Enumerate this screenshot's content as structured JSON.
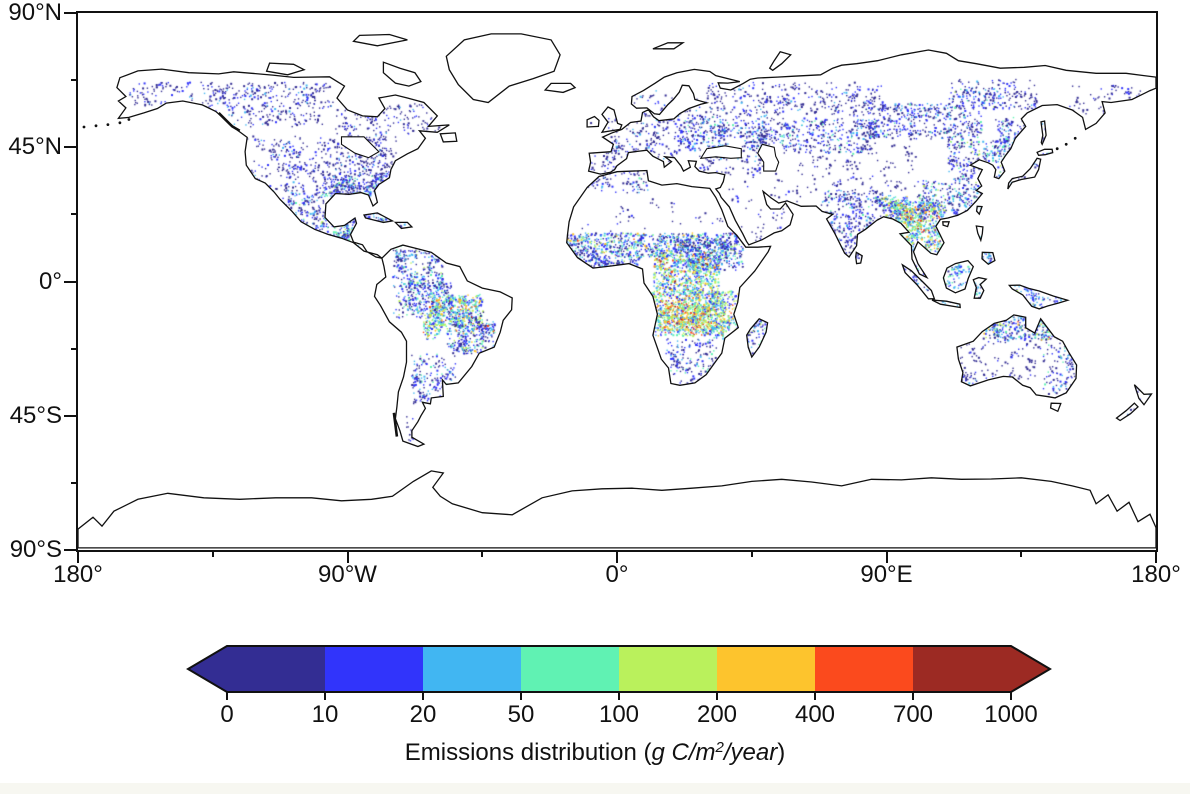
{
  "figure": {
    "background": "#ffffff",
    "bottom_strip_color": "#f7f7f1",
    "frame_color": "#111111"
  },
  "chart_data": {
    "type": "heatmap",
    "projection": "equirectangular",
    "title": "",
    "x_axis": {
      "tick_labels": [
        "180°",
        "90°W",
        "0°",
        "90°E",
        "180°"
      ],
      "tick_values_deg": [
        -180,
        -90,
        0,
        90,
        180
      ],
      "minor_tick_values_deg": [
        -135,
        -45,
        45,
        135
      ],
      "range_deg": [
        -180,
        180
      ]
    },
    "y_axis": {
      "tick_labels": [
        "90°N",
        "45°N",
        "0°",
        "45°S",
        "90°S"
      ],
      "tick_values_deg": [
        90,
        45,
        0,
        -45,
        -90
      ],
      "minor_tick_values_deg": [
        67.5,
        22.5,
        -22.5,
        -67.5
      ],
      "range_deg": [
        -90,
        90
      ]
    },
    "colorbar": {
      "label": "Emissions distribution (g C/m²/year)",
      "label_parts": {
        "prefix": "Emissions distribution (",
        "italic": "g C/m",
        "sup": "2",
        "italic2": "/year",
        "suffix": ")"
      },
      "tick_labels": [
        "0",
        "10",
        "20",
        "50",
        "100",
        "200",
        "400",
        "700",
        "1000"
      ],
      "segment_colors": [
        "#332d93",
        "#3134fb",
        "#41b6f2",
        "#60f2b3",
        "#baf15c",
        "#fdc42d",
        "#fb4a1d",
        "#9c2a23"
      ],
      "under_arrow_color": "#332d93",
      "over_arrow_color": "#9c2a23",
      "outline_color": "#111111"
    },
    "palettes": {
      "sparseLow": [
        [
          "#332d93",
          0.85
        ],
        [
          "#3134fb",
          0.15
        ]
      ],
      "low": [
        [
          "#332d93",
          0.68
        ],
        [
          "#3134fb",
          0.26
        ],
        [
          "#41b6f2",
          0.06
        ]
      ],
      "lowMid": [
        [
          "#332d93",
          0.52
        ],
        [
          "#3134fb",
          0.3
        ],
        [
          "#41b6f2",
          0.13
        ],
        [
          "#60f2b3",
          0.05
        ]
      ],
      "mid": [
        [
          "#332d93",
          0.38
        ],
        [
          "#3134fb",
          0.3
        ],
        [
          "#41b6f2",
          0.2
        ],
        [
          "#60f2b3",
          0.08
        ],
        [
          "#baf15c",
          0.04
        ]
      ],
      "cyanMid": [
        [
          "#332d93",
          0.25
        ],
        [
          "#3134fb",
          0.3
        ],
        [
          "#41b6f2",
          0.3
        ],
        [
          "#60f2b3",
          0.12
        ],
        [
          "#baf15c",
          0.03
        ]
      ],
      "midHigh": [
        [
          "#332d93",
          0.28
        ],
        [
          "#3134fb",
          0.27
        ],
        [
          "#41b6f2",
          0.2
        ],
        [
          "#60f2b3",
          0.12
        ],
        [
          "#baf15c",
          0.08
        ],
        [
          "#fdc42d",
          0.04
        ],
        [
          "#fb4a1d",
          0.01
        ]
      ],
      "high": [
        [
          "#3134fb",
          0.22
        ],
        [
          "#41b6f2",
          0.22
        ],
        [
          "#60f2b3",
          0.2
        ],
        [
          "#baf15c",
          0.18
        ],
        [
          "#fdc42d",
          0.11
        ],
        [
          "#fb4a1d",
          0.05
        ],
        [
          "#9c2a23",
          0.02
        ]
      ],
      "extreme": [
        [
          "#41b6f2",
          0.1
        ],
        [
          "#60f2b3",
          0.16
        ],
        [
          "#baf15c",
          0.27
        ],
        [
          "#fdc42d",
          0.24
        ],
        [
          "#fb4a1d",
          0.17
        ],
        [
          "#9c2a23",
          0.06
        ]
      ]
    },
    "regions": [
      {
        "name": "alaska-interior",
        "lon": [
          -163,
          -142
        ],
        "lat": [
          59,
          67
        ],
        "density": 0.5,
        "palette": "low"
      },
      {
        "name": "canada-boreal-west",
        "lon": [
          -140,
          -95
        ],
        "lat": [
          52,
          67
        ],
        "density": 0.55,
        "palette": "low"
      },
      {
        "name": "canada-boreal-east",
        "lon": [
          -95,
          -58
        ],
        "lat": [
          47,
          60
        ],
        "density": 0.4,
        "palette": "low"
      },
      {
        "name": "us-west",
        "lon": [
          -124,
          -100
        ],
        "lat": [
          30,
          49
        ],
        "density": 0.5,
        "palette": "low"
      },
      {
        "name": "us-central-east",
        "lon": [
          -100,
          -74
        ],
        "lat": [
          30,
          49
        ],
        "density": 0.8,
        "palette": "low"
      },
      {
        "name": "us-southeast",
        "lon": [
          -96,
          -78
        ],
        "lat": [
          28,
          36.5
        ],
        "density": 1.6,
        "palette": "mid"
      },
      {
        "name": "mexico",
        "lon": [
          -112,
          -86
        ],
        "lat": [
          14,
          30
        ],
        "density": 1.1,
        "palette": "mid"
      },
      {
        "name": "central-america-caribbean",
        "lon": [
          -92,
          -68
        ],
        "lat": [
          12,
          24
        ],
        "density": 1.4,
        "palette": "mid"
      },
      {
        "name": "south-america-north",
        "lon": [
          -75,
          -58
        ],
        "lat": [
          -2,
          11
        ],
        "density": 1.2,
        "palette": "mid"
      },
      {
        "name": "amazon-west",
        "lon": [
          -75,
          -55
        ],
        "lat": [
          -12,
          0
        ],
        "density": 1.2,
        "palette": "mid"
      },
      {
        "name": "arc-of-deforestation",
        "lon": [
          -63,
          -45
        ],
        "lat": [
          -15,
          -4
        ],
        "density": 2.0,
        "palette": "high"
      },
      {
        "name": "bolivia-hotspot",
        "lon": [
          -65,
          -58
        ],
        "lat": [
          -19,
          -12
        ],
        "density": 1.8,
        "palette": "high"
      },
      {
        "name": "cerrado-brazil",
        "lon": [
          -57,
          -41
        ],
        "lat": [
          -24,
          -10
        ],
        "density": 1.6,
        "palette": "midHigh"
      },
      {
        "name": "argentina-pampas",
        "lon": [
          -69,
          -54
        ],
        "lat": [
          -41,
          -24
        ],
        "density": 0.8,
        "palette": "lowMid"
      },
      {
        "name": "patagonia",
        "lon": [
          -74,
          -64
        ],
        "lat": [
          -55,
          -41
        ],
        "density": 0.12,
        "palette": "sparseLow"
      },
      {
        "name": "europe-west",
        "lon": [
          -9,
          20
        ],
        "lat": [
          36,
          55
        ],
        "density": 0.55,
        "palette": "low"
      },
      {
        "name": "scandinavia-baltic",
        "lon": [
          5,
          32
        ],
        "lat": [
          55,
          65
        ],
        "density": 0.35,
        "palette": "low"
      },
      {
        "name": "europe-east-ukraine",
        "lon": [
          20,
          50
        ],
        "lat": [
          44,
          56
        ],
        "density": 1.1,
        "palette": "lowMid"
      },
      {
        "name": "russia-boreal-west",
        "lon": [
          30,
          90
        ],
        "lat": [
          56,
          67
        ],
        "density": 0.5,
        "palette": "low"
      },
      {
        "name": "kazakh-steppe",
        "lon": [
          46,
          87
        ],
        "lat": [
          43,
          55
        ],
        "density": 0.8,
        "palette": "lowMid"
      },
      {
        "name": "siberia-south",
        "lon": [
          78,
          122
        ],
        "lat": [
          48,
          60
        ],
        "density": 0.9,
        "palette": "lowMid"
      },
      {
        "name": "yakutia",
        "lon": [
          110,
          140
        ],
        "lat": [
          58,
          68
        ],
        "density": 0.5,
        "palette": "low"
      },
      {
        "name": "yakutia-green-patch",
        "lon": [
          112,
          132
        ],
        "lat": [
          58,
          65
        ],
        "density": 0.6,
        "palette": "mid"
      },
      {
        "name": "russia-far-east",
        "lon": [
          126,
          145
        ],
        "lat": [
          42,
          56
        ],
        "density": 0.8,
        "palette": "lowMid"
      },
      {
        "name": "chukotka-kamchatka",
        "lon": [
          150,
          180
        ],
        "lat": [
          55,
          66
        ],
        "density": 0.3,
        "palette": "sparseLow"
      },
      {
        "name": "sahara-sparse",
        "lon": [
          -14,
          34
        ],
        "lat": [
          17,
          29
        ],
        "density": 0.06,
        "palette": "sparseLow"
      },
      {
        "name": "sahel-band",
        "lon": [
          -17,
          40
        ],
        "lat": [
          8.5,
          16.5
        ],
        "density": 2.0,
        "palette": "midHigh"
      },
      {
        "name": "west-africa-coast",
        "lon": [
          -14,
          8
        ],
        "lat": [
          4.5,
          9
        ],
        "density": 1.6,
        "palette": "mid"
      },
      {
        "name": "sudan-ethiopia",
        "lon": [
          22,
          42
        ],
        "lat": [
          4,
          14
        ],
        "density": 1.2,
        "palette": "mid"
      },
      {
        "name": "central-africa-north-hotspot",
        "lon": [
          12,
          34
        ],
        "lat": [
          -4,
          9.5
        ],
        "density": 2.2,
        "palette": "high"
      },
      {
        "name": "congo-angola-zambia",
        "lon": [
          11,
          36
        ],
        "lat": [
          -18,
          -3
        ],
        "density": 2.2,
        "palette": "high"
      },
      {
        "name": "angola-zambia-core",
        "lon": [
          15,
          31
        ],
        "lat": [
          -16,
          -7
        ],
        "density": 1.8,
        "palette": "extreme"
      },
      {
        "name": "mozambique-tanzania",
        "lon": [
          30,
          41
        ],
        "lat": [
          -19,
          -3
        ],
        "density": 1.6,
        "palette": "high"
      },
      {
        "name": "madagascar",
        "lon": [
          43,
          50.5
        ],
        "lat": [
          -26,
          -12
        ],
        "density": 1.2,
        "palette": "mid"
      },
      {
        "name": "south-africa",
        "lon": [
          16,
          33
        ],
        "lat": [
          -34,
          -19
        ],
        "density": 0.7,
        "palette": "lowMid"
      },
      {
        "name": "middle-east-sparse",
        "lon": [
          34,
          62
        ],
        "lat": [
          13,
          38
        ],
        "density": 0.12,
        "palette": "sparseLow"
      },
      {
        "name": "india",
        "lon": [
          68,
          89
        ],
        "lat": [
          8,
          31
        ],
        "density": 1.1,
        "palette": "lowMid"
      },
      {
        "name": "ne-india-bangladesh",
        "lon": [
          88,
          97
        ],
        "lat": [
          21,
          29
        ],
        "density": 2.0,
        "palette": "midHigh"
      },
      {
        "name": "se-asia-mainland",
        "lon": [
          92,
          109.5
        ],
        "lat": [
          10,
          27
        ],
        "density": 2.0,
        "palette": "high"
      },
      {
        "name": "myanmar-laos-core",
        "lon": [
          94.5,
          106
        ],
        "lat": [
          17,
          26
        ],
        "density": 1.0,
        "palette": "extreme"
      },
      {
        "name": "south-china",
        "lon": [
          100,
          122
        ],
        "lat": [
          21,
          34
        ],
        "density": 1.0,
        "palette": "mid"
      },
      {
        "name": "north-china-korea",
        "lon": [
          110,
          132
        ],
        "lat": [
          34,
          48
        ],
        "density": 0.9,
        "palette": "mid"
      },
      {
        "name": "japan",
        "lon": [
          130,
          142
        ],
        "lat": [
          31,
          43
        ],
        "density": 0.5,
        "palette": "lowMid"
      },
      {
        "name": "indonesia",
        "lon": [
          95,
          122
        ],
        "lat": [
          -8,
          6
        ],
        "density": 0.9,
        "palette": "cyanMid"
      },
      {
        "name": "philippines",
        "lon": [
          117,
          127
        ],
        "lat": [
          5,
          19
        ],
        "density": 0.7,
        "palette": "cyanMid"
      },
      {
        "name": "new-guinea",
        "lon": [
          131,
          151
        ],
        "lat": [
          -10,
          -1
        ],
        "density": 0.8,
        "palette": "cyanMid"
      },
      {
        "name": "australia-north",
        "lon": [
          122,
          147
        ],
        "lat": [
          -19.5,
          -10.5
        ],
        "density": 1.8,
        "palette": "midHigh"
      },
      {
        "name": "australia-east",
        "lon": [
          142,
          153.5
        ],
        "lat": [
          -38,
          -20
        ],
        "density": 0.7,
        "palette": "lowMid"
      },
      {
        "name": "australia-central-west",
        "lon": [
          113,
          142
        ],
        "lat": [
          -33,
          -17
        ],
        "density": 0.3,
        "palette": "sparseLow"
      },
      {
        "name": "australia-southwest",
        "lon": [
          114,
          120
        ],
        "lat": [
          -35,
          -30
        ],
        "density": 0.8,
        "palette": "lowMid"
      },
      {
        "name": "new-zealand",
        "lon": [
          166,
          179
        ],
        "lat": [
          -47,
          -34
        ],
        "density": 0.35,
        "palette": "lowMid"
      },
      {
        "name": "central-asia-sparse",
        "lon": [
          60,
          100
        ],
        "lat": [
          30,
          46
        ],
        "density": 0.2,
        "palette": "sparseLow"
      },
      {
        "name": "turkey-caucasus",
        "lon": [
          26,
          50
        ],
        "lat": [
          36,
          44
        ],
        "density": 0.5,
        "palette": "low"
      },
      {
        "name": "maghreb",
        "lon": [
          -10,
          11
        ],
        "lat": [
          30,
          37
        ],
        "density": 0.5,
        "palette": "lowMid"
      }
    ]
  }
}
